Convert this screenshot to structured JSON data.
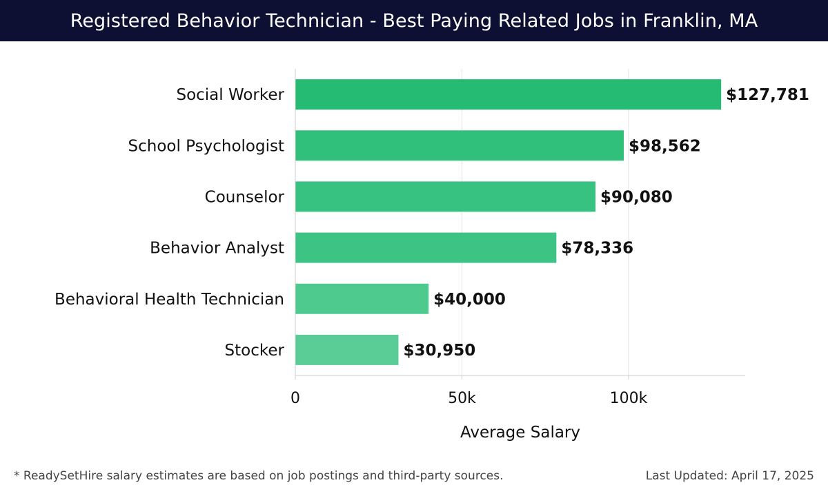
{
  "chart_data": {
    "type": "bar",
    "orientation": "horizontal",
    "title": "Registered Behavior Technician - Best Paying Related Jobs in Franklin, MA",
    "categories": [
      "Social Worker",
      "School Psychologist",
      "Counselor",
      "Behavior Analyst",
      "Behavioral Health Technician",
      "Stocker"
    ],
    "values": [
      127781,
      98562,
      90080,
      78336,
      40000,
      30950
    ],
    "value_labels": [
      "$127,781",
      "$98,562",
      "$90,080",
      "$78,336",
      "$40,000",
      "$30,950"
    ],
    "xlabel": "Average Salary",
    "ylabel": "",
    "xlim": [
      0,
      135000
    ],
    "x_ticks": [
      0,
      50000,
      100000
    ],
    "x_tick_labels": [
      "0",
      "50k",
      "100k"
    ],
    "grid": true,
    "colors": [
      "#25bb72",
      "#30c07b",
      "#38c281",
      "#3dc484",
      "#4fca8f",
      "#5acd96"
    ]
  },
  "footer": {
    "note": "* ReadySetHire salary estimates are based on job postings and third-party sources.",
    "last_updated": "Last Updated: April 17, 2025"
  }
}
